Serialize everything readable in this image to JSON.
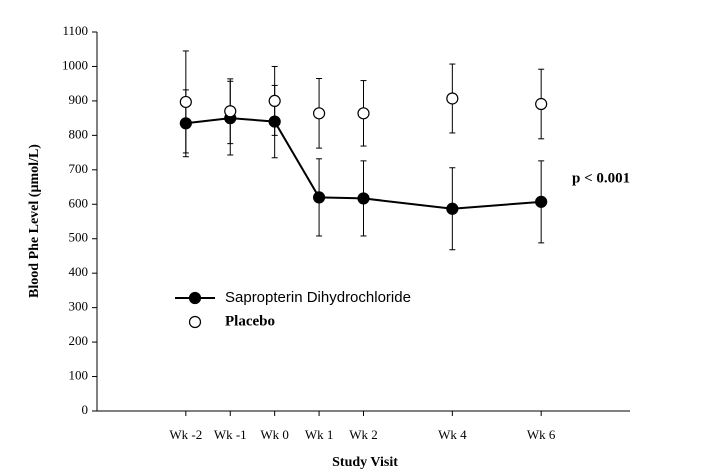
{
  "chart_data": {
    "type": "line",
    "x_label": "Study Visit",
    "y_label": "Blood Phe Level (µmol/L)",
    "annotation": "p < 0.001",
    "x": [
      -2,
      -1,
      0,
      1,
      2,
      4,
      6
    ],
    "xlim": [
      -4,
      8
    ],
    "xticks": [
      {
        "value": -2,
        "label": "Wk -2"
      },
      {
        "value": -1,
        "label": "Wk -1"
      },
      {
        "value": 0,
        "label": "Wk 0"
      },
      {
        "value": 1,
        "label": "Wk 1"
      },
      {
        "value": 2,
        "label": "Wk 2"
      },
      {
        "value": 4,
        "label": "Wk 4"
      },
      {
        "value": 6,
        "label": "Wk 6"
      }
    ],
    "ylim": [
      0,
      1100
    ],
    "yticks": [
      0,
      100,
      200,
      300,
      400,
      500,
      600,
      700,
      800,
      900,
      1000,
      1100
    ],
    "grid": false,
    "legend_position": "lower-left",
    "series": [
      {
        "name": "Sapropterin Dihydrochloride",
        "color": "#000000",
        "marker": "filled",
        "connected": true,
        "values": [
          835,
          850,
          840,
          620,
          617,
          587,
          607
        ],
        "errors": [
          97,
          107,
          105,
          112,
          109,
          119,
          119
        ]
      },
      {
        "name": "Placebo",
        "color": "#000000",
        "marker": "open",
        "connected": false,
        "values": [
          897,
          870,
          900,
          864,
          864,
          907,
          891
        ],
        "errors": [
          148,
          94,
          100,
          101,
          95,
          100,
          101
        ]
      }
    ]
  }
}
